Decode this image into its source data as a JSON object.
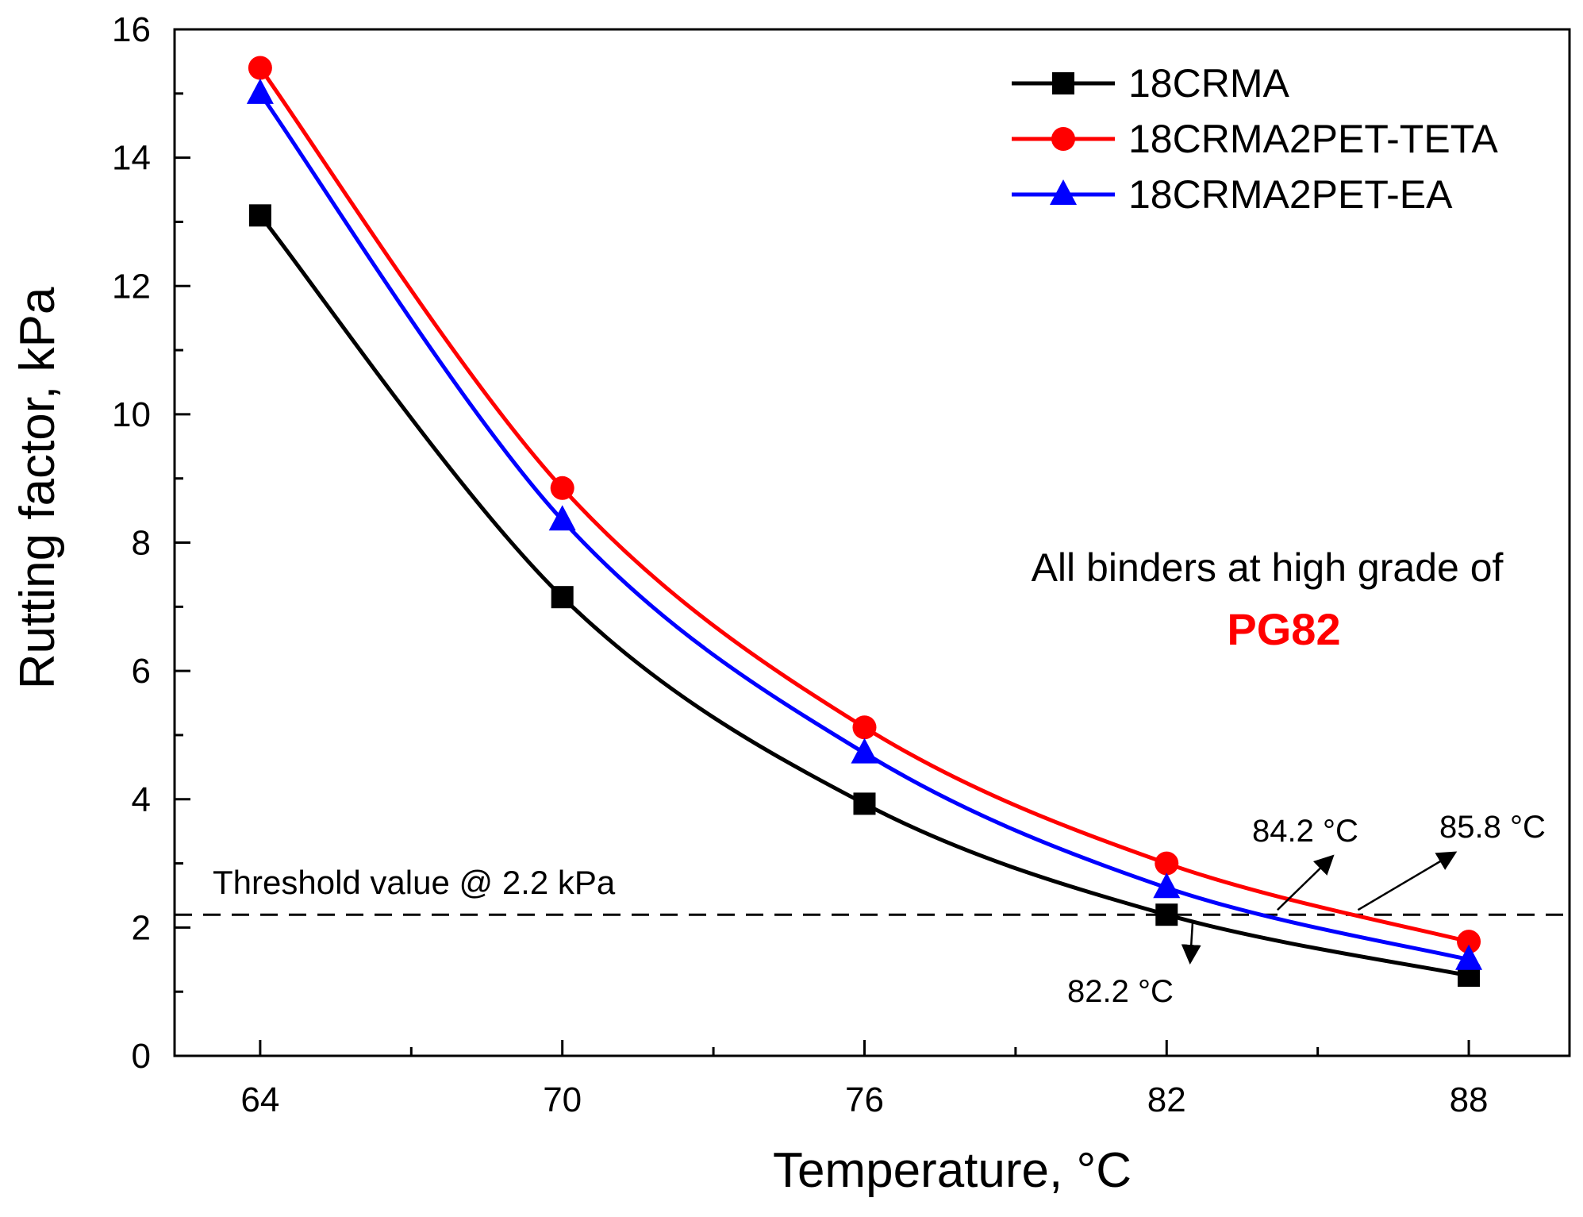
{
  "chart_data": {
    "type": "line",
    "xlabel": "Temperature, °C",
    "ylabel": "Rutting factor, kPa",
    "xlim": [
      62.3,
      90
    ],
    "ylim": [
      0,
      16
    ],
    "x": [
      64,
      70,
      76,
      82,
      88
    ],
    "xticks": [
      64,
      70,
      76,
      82,
      88
    ],
    "xticks_minor": [
      67,
      73,
      79,
      85
    ],
    "yticks": [
      0,
      2,
      4,
      6,
      8,
      10,
      12,
      14,
      16
    ],
    "yticks_minor": [
      1,
      3,
      5,
      7,
      9,
      11,
      13,
      15
    ],
    "xtick_labels": [
      "64",
      "70",
      "76",
      "82",
      "88"
    ],
    "ytick_labels": [
      "0",
      "2",
      "4",
      "6",
      "8",
      "10",
      "12",
      "14",
      "16"
    ],
    "legend_position": "top-right",
    "series": [
      {
        "name": "18CRMA",
        "color": "#000000",
        "marker": "square",
        "values": [
          13.1,
          7.15,
          3.93,
          2.2,
          1.25
        ]
      },
      {
        "name": "18CRMA2PET-TETA",
        "color": "#ff0000",
        "marker": "circle",
        "values": [
          15.4,
          8.85,
          5.12,
          3.0,
          1.78
        ]
      },
      {
        "name": "18CRMA2PET-EA",
        "color": "#0000ff",
        "marker": "triangle",
        "values": [
          15.0,
          8.35,
          4.72,
          2.62,
          1.5
        ]
      }
    ],
    "threshold": {
      "value": 2.2,
      "label": "Threshold value @ 2.2 kPa"
    },
    "annotations": [
      {
        "text": "84.2 °C",
        "arrow_to": [
          84.2,
          2.2
        ]
      },
      {
        "text": "85.8 °C",
        "arrow_to": [
          85.8,
          2.2
        ]
      },
      {
        "text": "82.2 °C",
        "arrow_to": [
          82.2,
          2.2
        ]
      }
    ],
    "note": {
      "line1": "All binders at high grade of",
      "line2": "PG82",
      "line2_color": "#ff0000"
    }
  }
}
